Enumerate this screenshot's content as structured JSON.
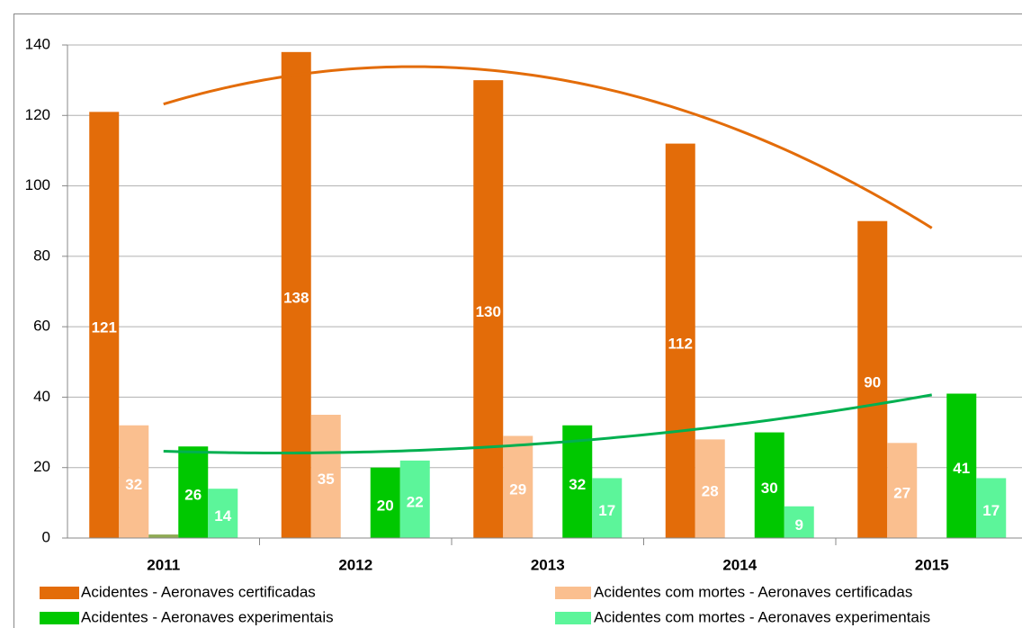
{
  "chart_data": {
    "type": "bar",
    "categories": [
      "2011",
      "2012",
      "2013",
      "2014",
      "2015"
    ],
    "series": [
      {
        "name": "Acidentes - Aeronaves certificadas",
        "color": "#e36c09",
        "values": [
          121,
          138,
          130,
          112,
          90
        ],
        "data_labels": true,
        "trendline": true
      },
      {
        "name": "Acidentes com mortes - Aeronaves certificadas",
        "color": "#fabf8f",
        "values": [
          32,
          35,
          29,
          28,
          27
        ],
        "data_labels": true,
        "trendline": false
      },
      {
        "color": "#8faa54",
        "values": [
          1,
          null,
          null,
          null,
          null
        ],
        "data_labels": false,
        "trendline": false
      },
      {
        "name": "Acidentes - Aeronaves experimentais",
        "color": "#00c800",
        "values": [
          26,
          20,
          32,
          30,
          41
        ],
        "data_labels": true,
        "trendline": true,
        "trend_color": "#00b050"
      },
      {
        "name": "Acidentes com mortes - Aeronaves experimentais",
        "color": "#5cf59a",
        "values": [
          14,
          22,
          17,
          9,
          17
        ],
        "data_labels": true,
        "trendline": false
      }
    ],
    "ylim": [
      0,
      140
    ],
    "yticks": [
      0,
      20,
      40,
      60,
      80,
      100,
      120,
      140
    ],
    "grid": true,
    "legend": "bottom"
  }
}
